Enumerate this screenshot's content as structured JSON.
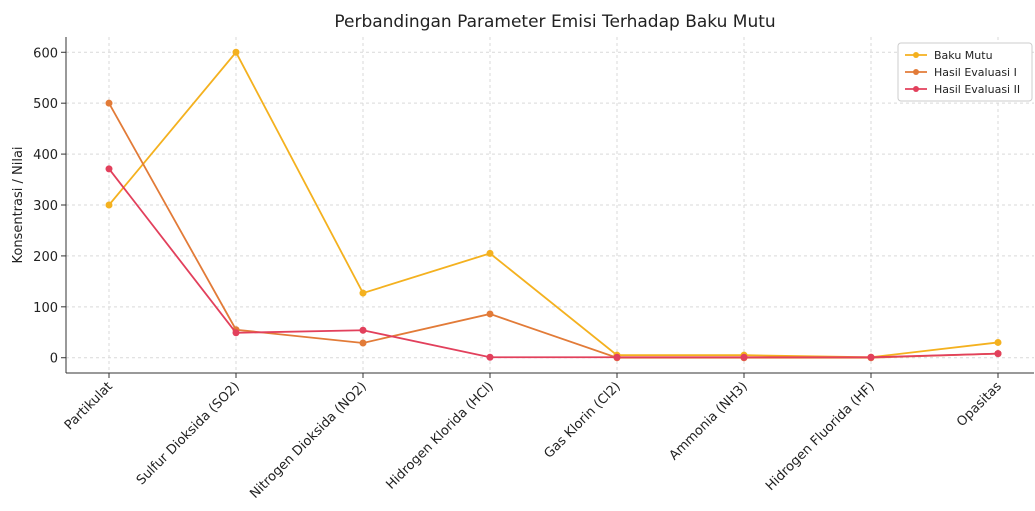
{
  "chart_data": {
    "type": "line",
    "title": "Perbandingan Parameter Emisi Terhadap Baku Mutu",
    "y_label": "Konsentrasi / Nilai",
    "categories": [
      "Partikulat",
      "Sulfur Dioksida (SO2)",
      "Nitrogen Dioksida (NO2)",
      "Hidrogen Klorida (HCl)",
      "Gas Klorin (Cl2)",
      "Ammonia (NH3)",
      "Hidrogen Fluorida (HF)",
      "Opasitas"
    ],
    "series": [
      {
        "name": "Baku Mutu",
        "color": "#f4b11f",
        "values": [
          300,
          600,
          127,
          205,
          5,
          5,
          1,
          30
        ]
      },
      {
        "name": "Hasil Evaluasi I",
        "color": "#e27b38",
        "values": [
          500,
          55,
          29,
          86,
          0,
          0,
          0,
          8
        ]
      },
      {
        "name": "Hasil Evaluasi II",
        "color": "#e2405c",
        "values": [
          371,
          49,
          54,
          1,
          1,
          1,
          1,
          8
        ]
      }
    ],
    "ylim": [
      -30,
      630
    ],
    "yticks": [
      0,
      100,
      200,
      300,
      400,
      500,
      600
    ],
    "grid": true,
    "legend": "upper right"
  }
}
